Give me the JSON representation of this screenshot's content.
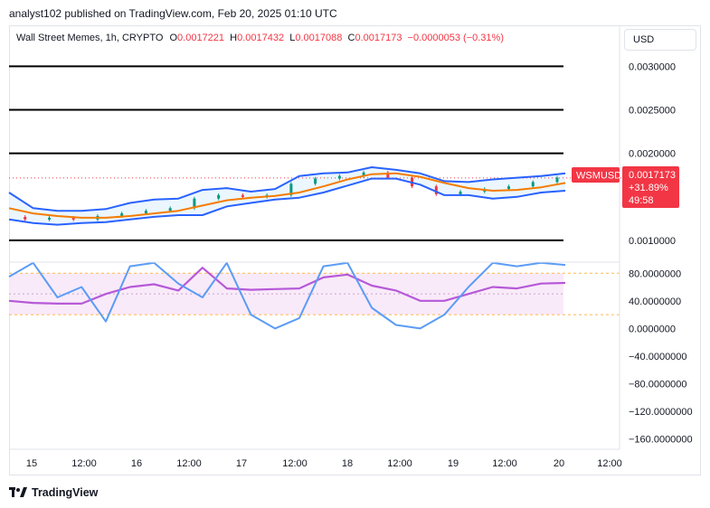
{
  "publish_line": "analyst102 published on TradingView.com, Feb 20, 2025 01:10 UTC",
  "legend": {
    "symbol": "Wall Street Memes, 1h, CRYPTO",
    "o_label": "O",
    "o_value": "0.0017221",
    "h_label": "H",
    "h_value": "0.0017432",
    "l_label": "L",
    "l_value": "0.0017088",
    "c_label": "C",
    "c_value": "0.0017173",
    "change": "−0.0000053 (−0.31%)"
  },
  "currency_button": "USD",
  "price_badge": {
    "ticker": "WSMUSD",
    "price": "0.0017173",
    "pct": "+31.89%",
    "countdown": "49:58"
  },
  "footer_brand": "TradingView",
  "colors": {
    "up": "#089981",
    "down": "#f23645",
    "bollinger": "#2962ff",
    "bb_fill": "#e3f2fd",
    "ma": "#f57c00",
    "stoch_k": "#5b9cf6",
    "stoch_d": "#b659d8",
    "stoch_band": "#f8e5f8",
    "band_line": "#ffb74d"
  },
  "chart_data": [
    {
      "type": "line",
      "panel": "price",
      "title": "Wall Street Memes, 1h, CRYPTO",
      "x_ticks": [
        "15",
        "12:00",
        "16",
        "12:00",
        "17",
        "12:00",
        "18",
        "12:00",
        "19",
        "12:00",
        "20",
        "12:00"
      ],
      "y_ticks": [
        "0.0030000",
        "0.0025000",
        "0.0020000",
        "0.0010000"
      ],
      "ylim": [
        0.00075,
        0.00345
      ],
      "horizontal_lines": [
        0.003,
        0.0025,
        0.002,
        0.001
      ],
      "last_price": 0.0017173,
      "x": [
        0,
        6,
        12,
        18,
        24,
        30,
        36,
        42,
        48,
        54,
        60,
        66,
        72,
        78,
        84,
        90,
        96,
        102,
        108,
        114,
        120,
        126,
        132,
        138
      ],
      "series": [
        {
          "name": "close",
          "values": [
            0.00127,
            0.00124,
            0.00126,
            0.00124,
            0.00128,
            0.00131,
            0.00134,
            0.00137,
            0.00148,
            0.00152,
            0.0015,
            0.00152,
            0.00165,
            0.00171,
            0.00174,
            0.00178,
            0.00172,
            0.00162,
            0.00153,
            0.00156,
            0.00159,
            0.00162,
            0.00167,
            0.00172
          ]
        },
        {
          "name": "ma",
          "values": [
            0.00137,
            0.00131,
            0.00128,
            0.00126,
            0.00126,
            0.00128,
            0.00131,
            0.00134,
            0.0014,
            0.00146,
            0.00149,
            0.00151,
            0.00155,
            0.00162,
            0.0017,
            0.00176,
            0.00177,
            0.00173,
            0.00166,
            0.0016,
            0.00157,
            0.00158,
            0.00161,
            0.00166
          ]
        },
        {
          "name": "bb_upper",
          "values": [
            0.00155,
            0.00137,
            0.00134,
            0.00134,
            0.00136,
            0.00143,
            0.00147,
            0.00148,
            0.00158,
            0.0016,
            0.00156,
            0.00159,
            0.00174,
            0.00177,
            0.00178,
            0.00184,
            0.00181,
            0.00177,
            0.00168,
            0.00167,
            0.0017,
            0.00172,
            0.00174,
            0.00177
          ]
        },
        {
          "name": "bb_lower",
          "values": [
            0.00124,
            0.0012,
            0.00118,
            0.0012,
            0.00121,
            0.00124,
            0.00127,
            0.00129,
            0.00129,
            0.00139,
            0.00143,
            0.00147,
            0.00149,
            0.00155,
            0.00163,
            0.00171,
            0.00171,
            0.00164,
            0.00152,
            0.00152,
            0.00148,
            0.0015,
            0.00155,
            0.00157
          ]
        }
      ]
    },
    {
      "type": "line",
      "panel": "oscillator",
      "y_ticks": [
        "80.0000000",
        "40.0000000",
        "0.0000000",
        "−40.0000000",
        "−80.0000000",
        "−120.0000000",
        "−160.0000000"
      ],
      "ylim": [
        -175,
        100
      ],
      "band": [
        20,
        80
      ],
      "x": [
        0,
        6,
        12,
        18,
        24,
        30,
        36,
        42,
        48,
        54,
        60,
        66,
        72,
        78,
        84,
        90,
        96,
        102,
        108,
        114,
        120,
        126,
        132,
        138
      ],
      "series": [
        {
          "name": "k",
          "values": [
            75,
            95,
            45,
            60,
            10,
            90,
            95,
            65,
            45,
            95,
            20,
            0,
            15,
            90,
            95,
            30,
            5,
            0,
            20,
            60,
            95,
            90,
            95,
            92
          ]
        },
        {
          "name": "d",
          "values": [
            40,
            37,
            36,
            36,
            50,
            60,
            64,
            55,
            88,
            58,
            56,
            57,
            58,
            74,
            78,
            62,
            55,
            40,
            40,
            50,
            60,
            58,
            65,
            66
          ]
        }
      ]
    }
  ]
}
